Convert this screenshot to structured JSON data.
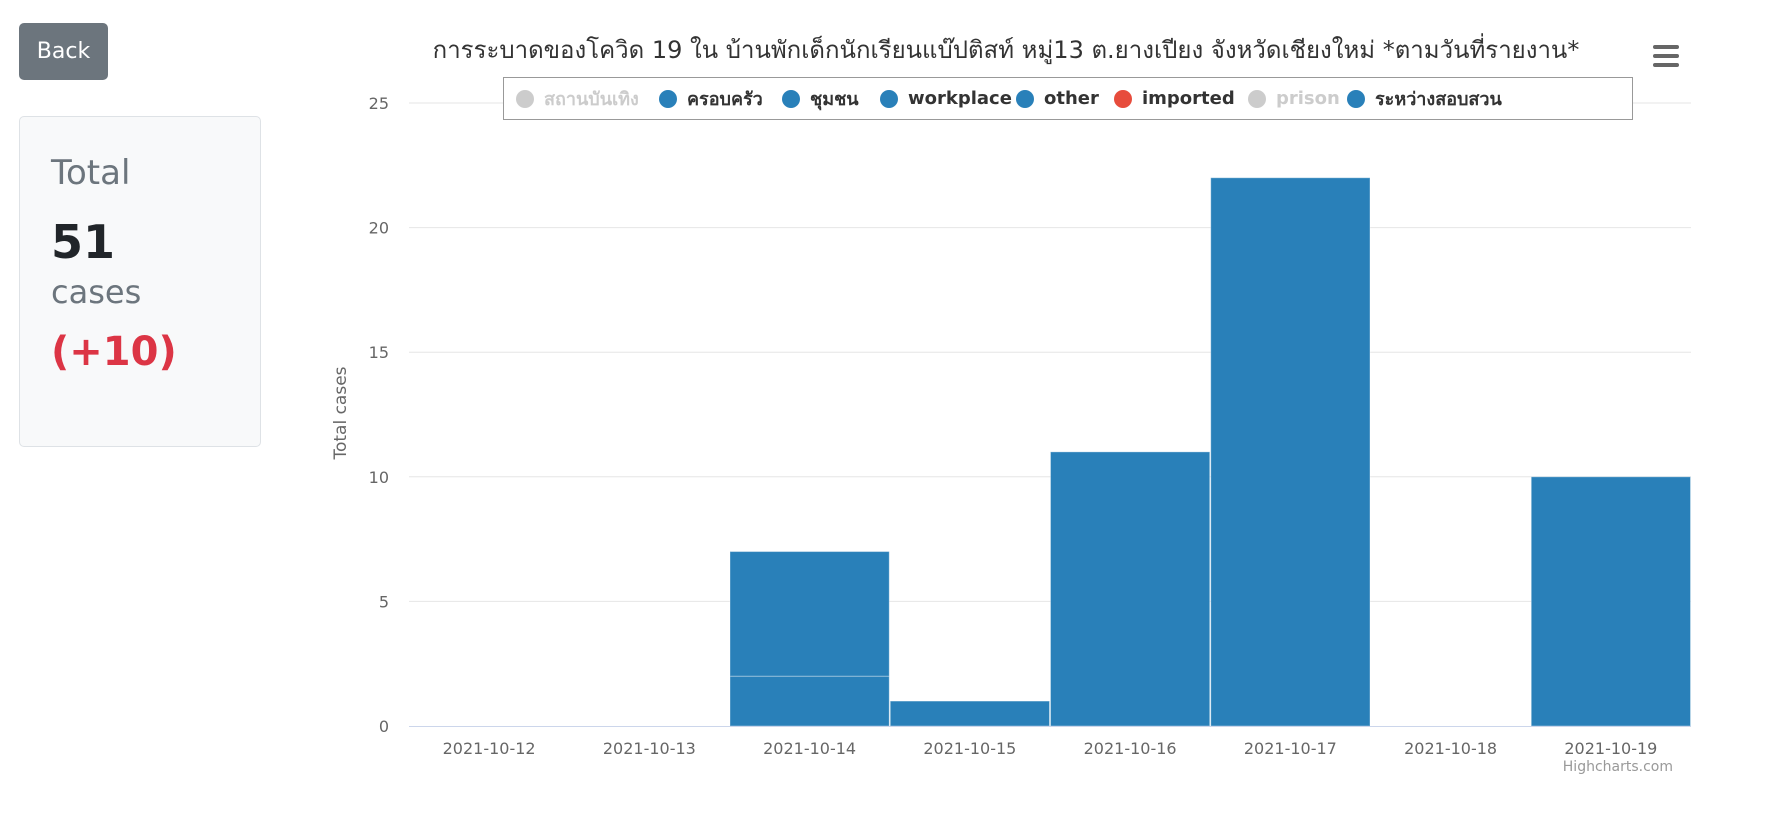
{
  "back_button": {
    "label": "Back"
  },
  "summary": {
    "label": "Total",
    "value": "51",
    "unit": "cases",
    "delta": "(+10)"
  },
  "credits": "Highcharts.com",
  "menu_icon": "hamburger-menu-icon",
  "chart_data": {
    "type": "bar",
    "stacked": true,
    "title": "การระบาดของโควิด 19 ใน บ้านพักเด็กนักเรียนแบ๊ปติสท์ หมู่13 ต.ยางเปียง จังหวัดเชียงใหม่ *ตามวันที่รายงาน*",
    "xlabel": "",
    "ylabel": "Total cases",
    "ylim": [
      0,
      25
    ],
    "yticks": [
      0,
      5,
      10,
      15,
      20,
      25
    ],
    "grid": true,
    "legend_placement": "top",
    "categories": [
      "2021-10-12",
      "2021-10-13",
      "2021-10-14",
      "2021-10-15",
      "2021-10-16",
      "2021-10-17",
      "2021-10-18",
      "2021-10-19"
    ],
    "series": [
      {
        "name": "สถานบันเทิง",
        "color": "#cccccc",
        "visible": false,
        "values": [
          0,
          0,
          0,
          0,
          0,
          0,
          0,
          0
        ]
      },
      {
        "name": "ครอบครัว",
        "color": "#2980b9",
        "visible": true,
        "values": [
          0,
          0,
          0,
          0,
          0,
          0,
          0,
          0
        ]
      },
      {
        "name": "ชุมชน",
        "color": "#2980b9",
        "visible": true,
        "values": [
          0,
          0,
          0,
          0,
          0,
          0,
          0,
          0
        ]
      },
      {
        "name": "workplace",
        "color": "#2980b9",
        "visible": true,
        "values": [
          0,
          0,
          0,
          0,
          0,
          0,
          0,
          0
        ]
      },
      {
        "name": "other",
        "color": "#2980b9",
        "visible": true,
        "values": [
          0,
          0,
          5,
          0,
          0,
          0,
          0,
          0
        ]
      },
      {
        "name": "imported",
        "color": "#e74c3c",
        "visible": true,
        "values": [
          0,
          0,
          0,
          0,
          0,
          0,
          0,
          0
        ]
      },
      {
        "name": "prison",
        "color": "#cccccc",
        "visible": false,
        "values": [
          0,
          0,
          0,
          0,
          0,
          0,
          0,
          0
        ]
      },
      {
        "name": "ระหว่างสอบสวน",
        "color": "#2980b9",
        "visible": true,
        "values": [
          0,
          0,
          2,
          1,
          11,
          22,
          0,
          10
        ]
      }
    ]
  }
}
